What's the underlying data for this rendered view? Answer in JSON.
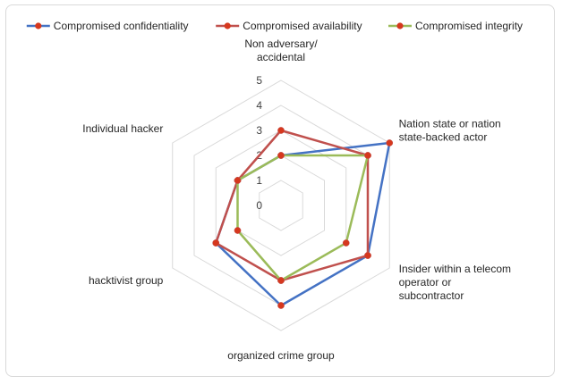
{
  "chart_data": {
    "type": "radar",
    "categories": [
      [
        "Non adversary/",
        "accidental"
      ],
      [
        "Nation state or nation",
        "state-backed actor"
      ],
      [
        "Insider within a telecom",
        "operator or",
        "subcontractor"
      ],
      [
        "organized crime group"
      ],
      [
        "hacktivist group"
      ],
      [
        "Individual hacker"
      ]
    ],
    "r_ticks": [
      "0",
      "1",
      "2",
      "3",
      "4",
      "5"
    ],
    "r_range": [
      0,
      5
    ],
    "legend_position": "top",
    "grid": true,
    "series": [
      {
        "name": "Compromised confidentiality",
        "color": "#4472c4",
        "values": [
          2,
          5,
          4,
          4,
          3,
          2
        ]
      },
      {
        "name": "Compromised availability",
        "color": "#c0504d",
        "values": [
          3,
          4,
          4,
          3,
          3,
          2
        ]
      },
      {
        "name": "Compromised integrity",
        "color": "#9bbb59",
        "values": [
          2,
          4,
          3,
          3,
          2,
          2
        ]
      }
    ]
  }
}
